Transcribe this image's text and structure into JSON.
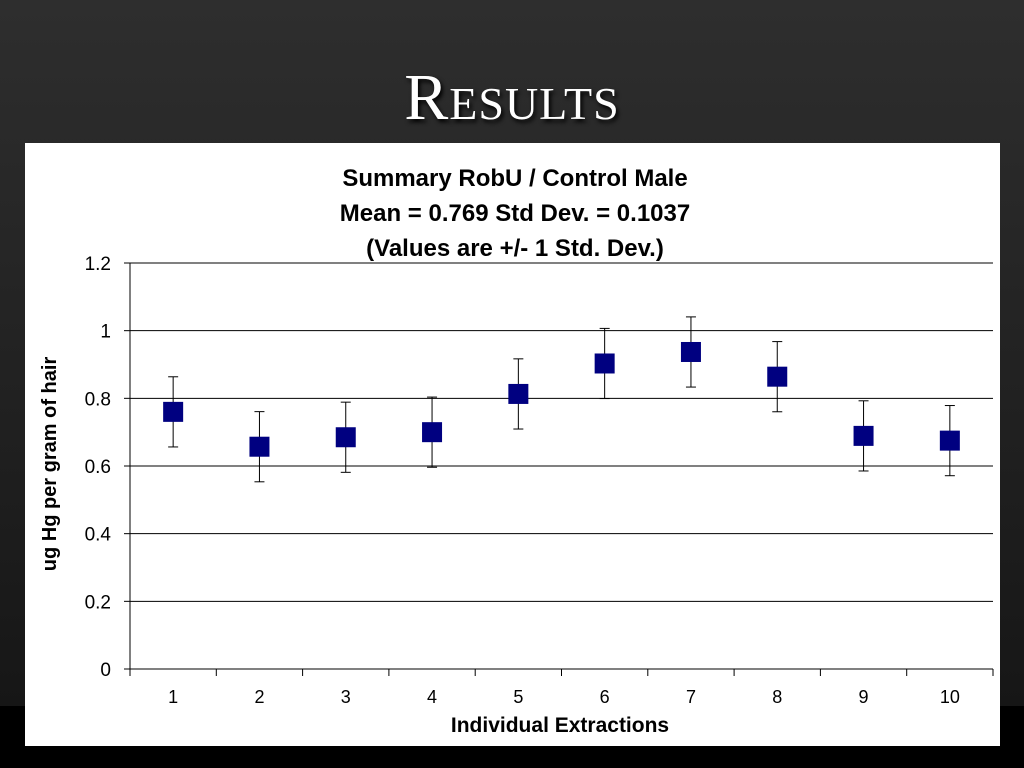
{
  "slide": {
    "title": "Results"
  },
  "colors": {
    "marker": "#000080",
    "gridline": "#000000",
    "errorbar": "#000000"
  },
  "chart_data": {
    "type": "scatter",
    "title_lines": [
      "Summary RobU / Control Male",
      "Mean = 0.769  Std Dev. = 0.1037",
      "(Values are +/- 1 Std. Dev.)"
    ],
    "xlabel": "Individual Extractions",
    "ylabel": "ug Hg per gram of hair",
    "ylim": [
      0,
      1.2
    ],
    "yticks": [
      "0",
      "0.2",
      "0.4",
      "0.6",
      "0.8",
      "1",
      "1.2"
    ],
    "categories": [
      "1",
      "2",
      "3",
      "4",
      "5",
      "6",
      "7",
      "8",
      "9",
      "10"
    ],
    "values": [
      0.76,
      0.657,
      0.685,
      0.7,
      0.813,
      0.903,
      0.937,
      0.864,
      0.689,
      0.675
    ],
    "error": 0.1037,
    "grid": true,
    "legend": "none"
  }
}
